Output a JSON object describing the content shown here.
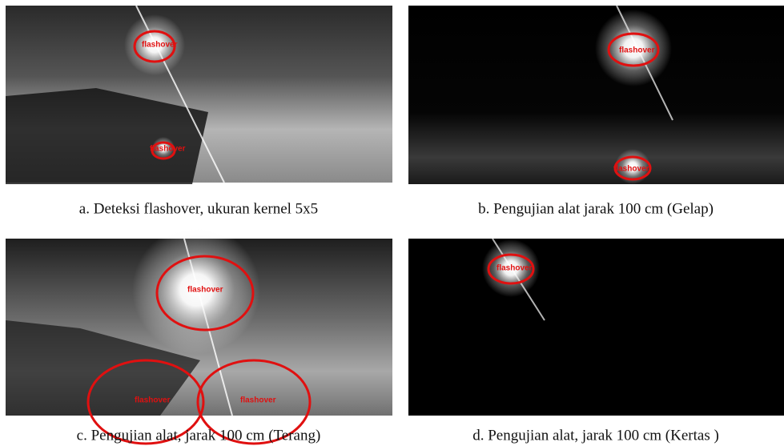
{
  "panels": [
    {
      "caption": "a. Deteksi flashover, ukuran kernel 5x5",
      "labels": [
        "flashover",
        "flashover"
      ]
    },
    {
      "caption": "b. Pengujian alat jarak 100 cm (Gelap)",
      "labels": [
        "flashover",
        "flashover"
      ]
    },
    {
      "caption": "c. Pengujian alat, jarak 100 cm (Terang)",
      "labels": [
        "flashover",
        "flashover",
        "flashover"
      ]
    },
    {
      "caption": "d. Pengujian alat, jarak 100 cm (Kertas )",
      "labels": [
        "flashover"
      ]
    }
  ]
}
